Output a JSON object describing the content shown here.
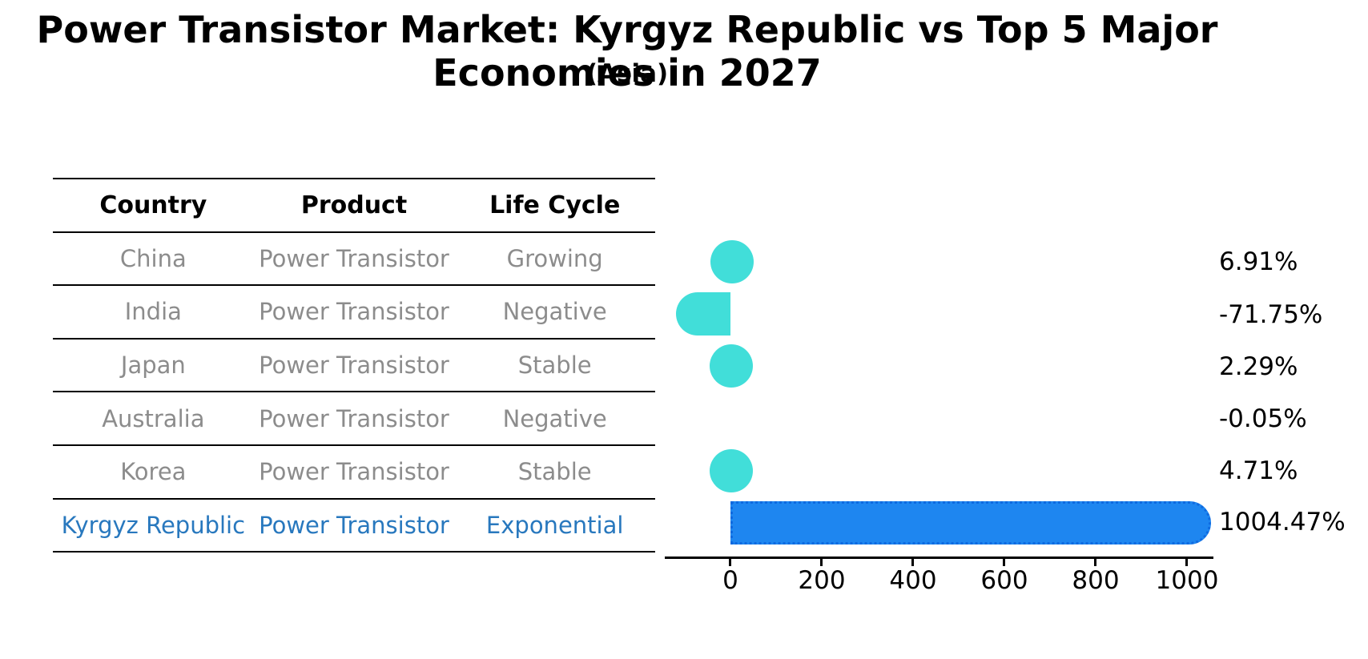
{
  "title": "Power Transistor Market: Kyrgyz Republic vs Top 5 Major Economies in 2027",
  "subtitle": "(Asia)",
  "table": {
    "headers": [
      "Country",
      "Product",
      "Life Cycle"
    ],
    "rows": [
      {
        "country": "China",
        "product": "Power Transistor",
        "life_cycle": "Growing"
      },
      {
        "country": "India",
        "product": "Power Transistor",
        "life_cycle": "Negative"
      },
      {
        "country": "Japan",
        "product": "Power Transistor",
        "life_cycle": "Stable"
      },
      {
        "country": "Australia",
        "product": "Power Transistor",
        "life_cycle": "Negative"
      },
      {
        "country": "Korea",
        "product": "Power Transistor",
        "life_cycle": "Stable"
      },
      {
        "country": "Kyrgyz Republic",
        "product": "Power Transistor",
        "life_cycle": "Exponential"
      }
    ]
  },
  "chart_data": {
    "type": "bar",
    "orientation": "horizontal",
    "categories": [
      "China",
      "India",
      "Japan",
      "Australia",
      "Korea",
      "Kyrgyz Republic"
    ],
    "values": [
      6.91,
      -71.75,
      2.29,
      -0.05,
      4.71,
      1004.47
    ],
    "value_labels": [
      "6.91%",
      "-71.75%",
      "2.29%",
      "-0.05%",
      "4.71%",
      "1004.47%"
    ],
    "x_ticks": [
      "0",
      "200",
      "400",
      "600",
      "800",
      "1000"
    ],
    "xlim": [
      -144,
      1058
    ],
    "grid": false,
    "legend": false,
    "highlight_index": 5,
    "bar_style": "rounded-caps, highlighted bar has dotted edge"
  },
  "colors": {
    "default_bar": "#41ded9",
    "highlight_bar": "#1e86f0",
    "highlight_bar_edge": "#0f6ae0",
    "highlight_text": "#2878be",
    "muted_text": "#8c8c8c",
    "axis": "#000000"
  }
}
